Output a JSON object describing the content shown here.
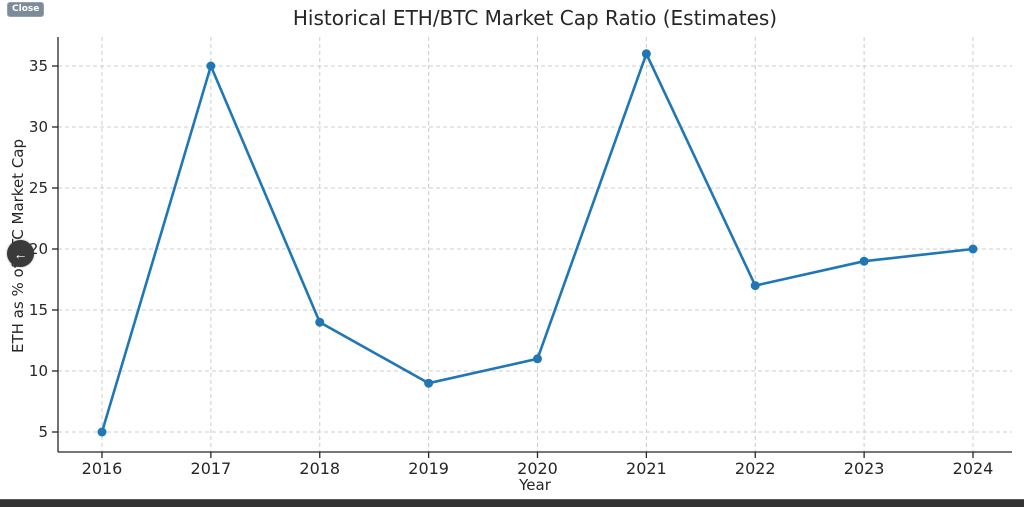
{
  "overlay": {
    "close_button_label": "Close",
    "back_button_icon": "arrow-left-icon",
    "back_button_glyph": "←"
  },
  "chart_data": {
    "type": "line",
    "title": "Historical ETH/BTC Market Cap Ratio (Estimates)",
    "xlabel": "Year",
    "ylabel": "ETH as % of BTC Market Cap",
    "categories": [
      2016,
      2017,
      2018,
      2019,
      2020,
      2021,
      2022,
      2023,
      2024
    ],
    "series": [
      {
        "name": "ETH as % of BTC market cap",
        "values": [
          5,
          35,
          14,
          9,
          11,
          36,
          17,
          19,
          20
        ]
      }
    ],
    "yticks": [
      5,
      10,
      15,
      20,
      25,
      30,
      35
    ],
    "ylim": [
      3.4,
      37.3
    ],
    "grid": true,
    "grid_style": "dashed",
    "legend": "none",
    "marker": "circle",
    "line_color": "#1f77b4",
    "grid_color": "#cccccc",
    "axis_color": "#262626",
    "text_color": "#262626"
  }
}
